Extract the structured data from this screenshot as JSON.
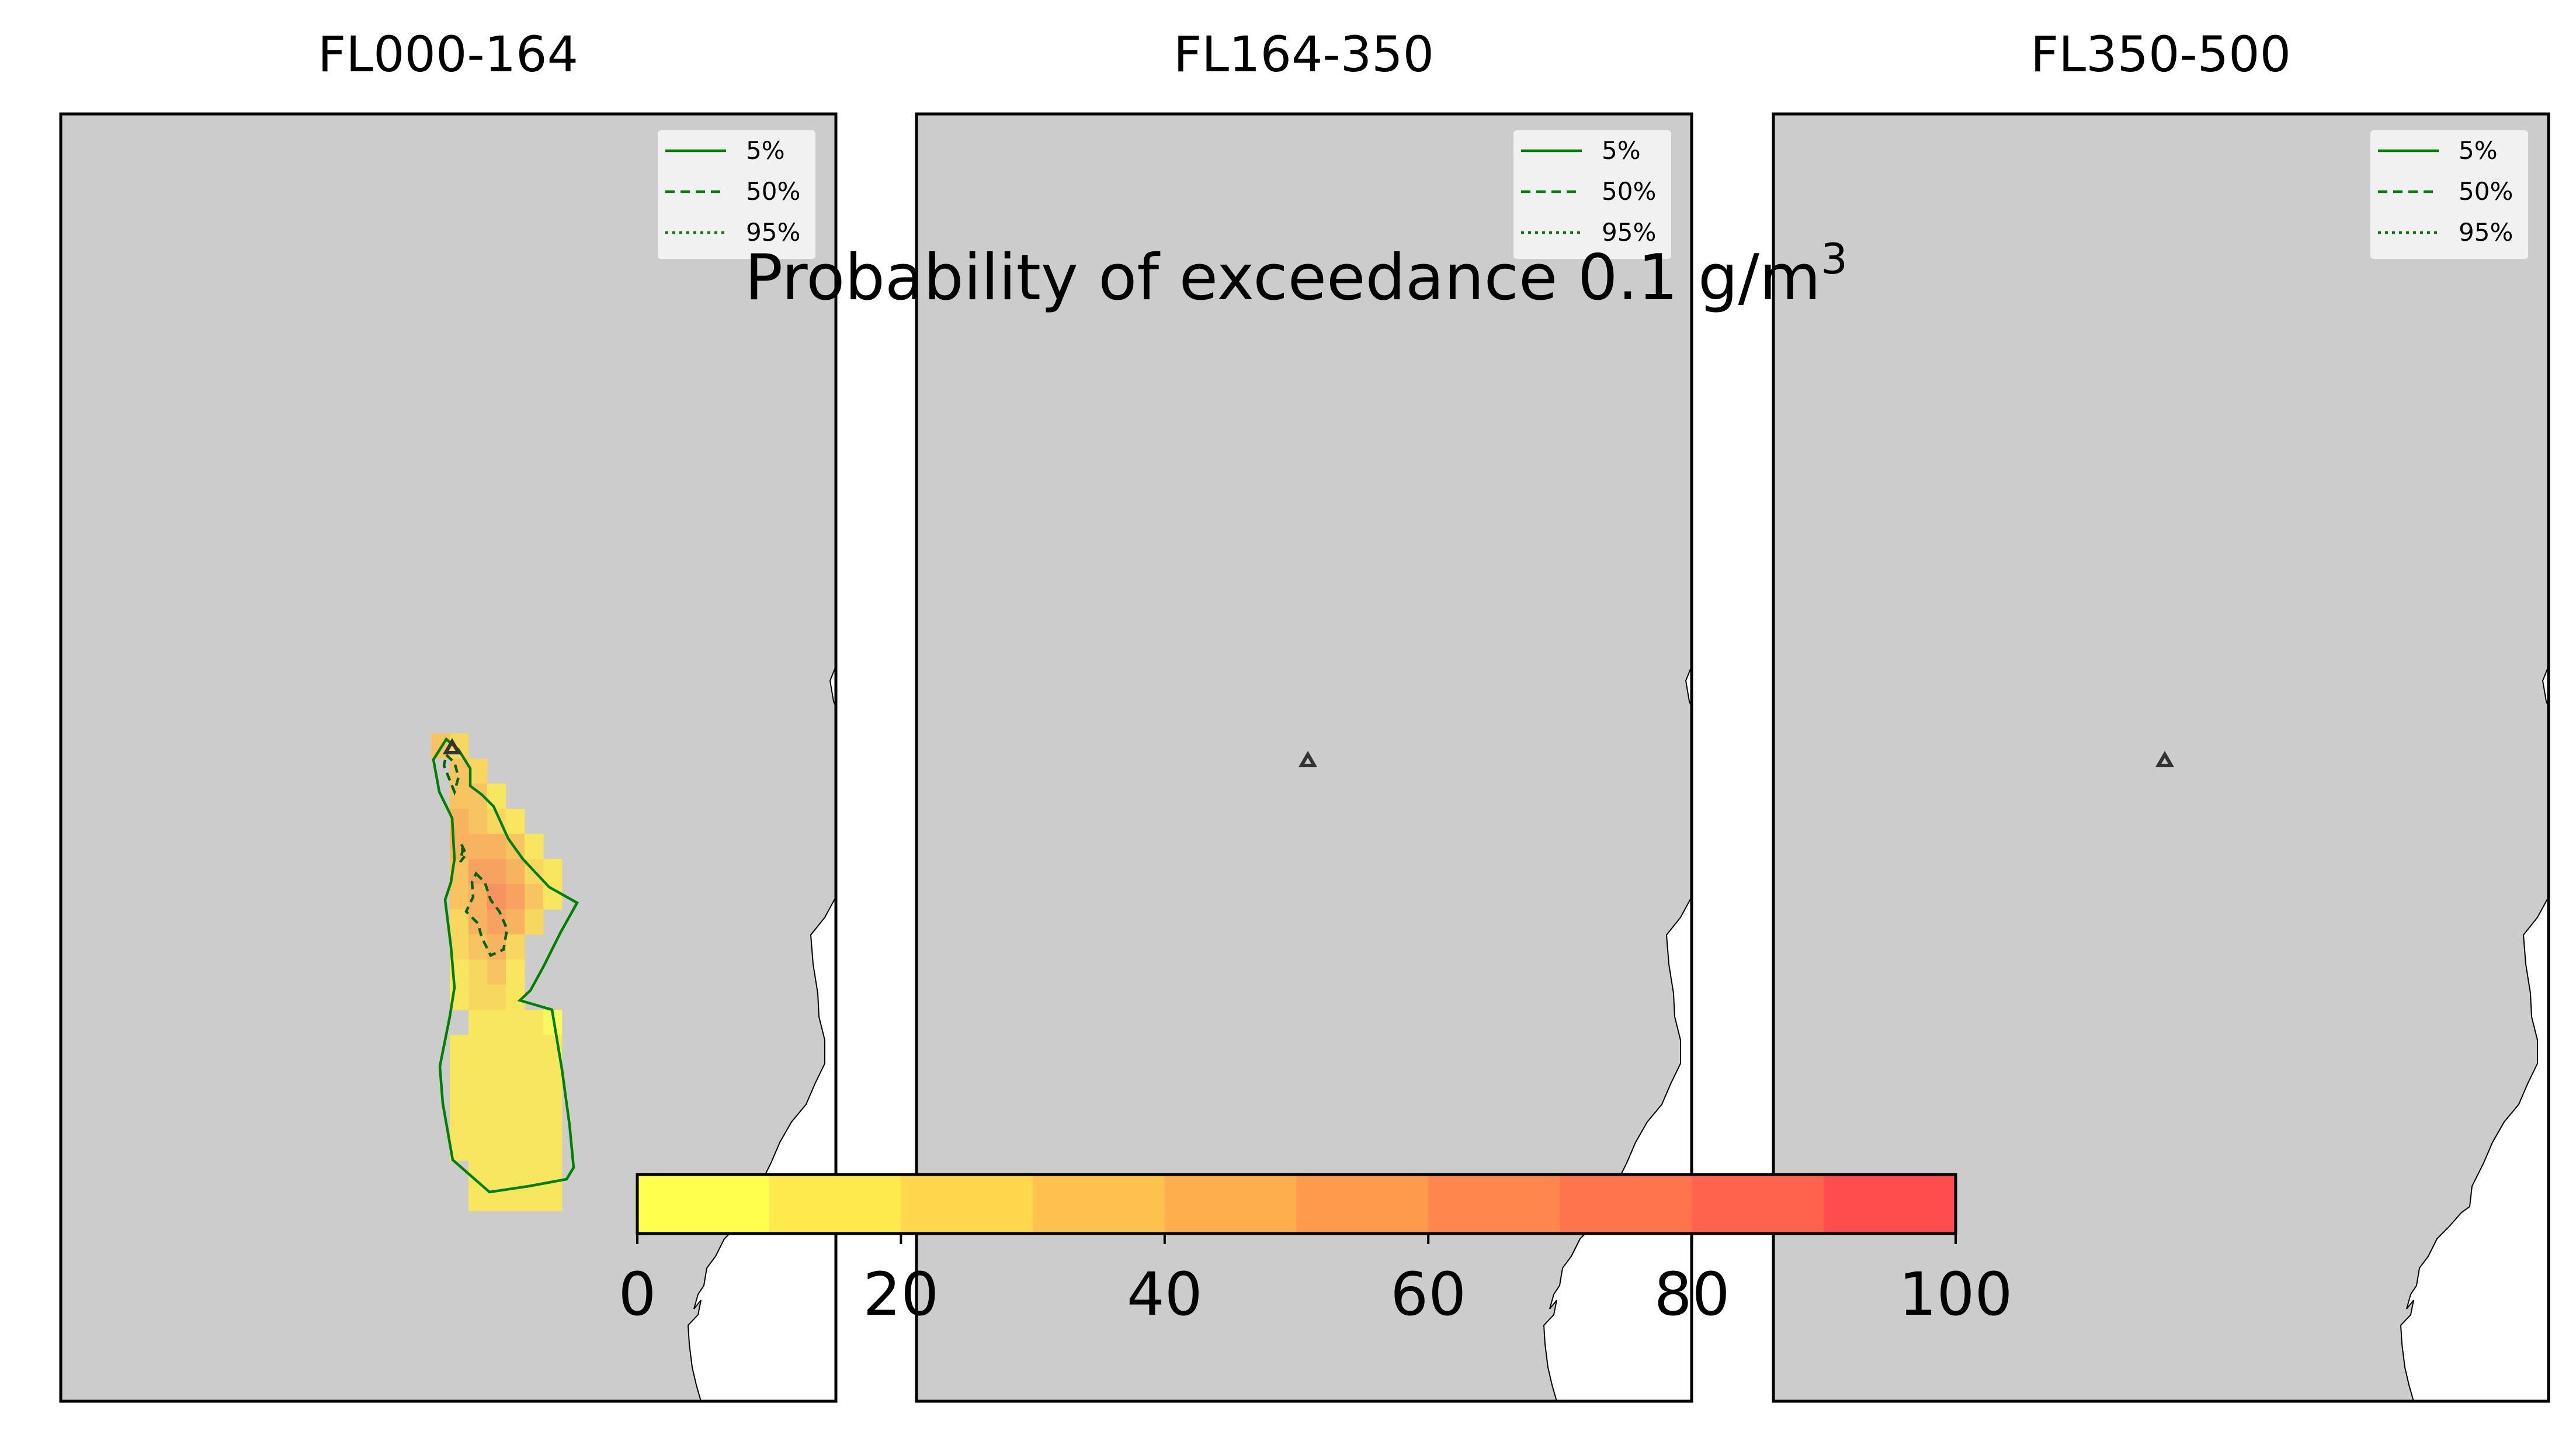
{
  "figure": {
    "suptitle_main": "Probability of exceedance 0.1 g/m",
    "suptitle_sup": "3"
  },
  "panels": [
    {
      "title": "FL000-164",
      "has_plume": true
    },
    {
      "title": "FL164-350",
      "has_plume": false
    },
    {
      "title": "FL350-500",
      "has_plume": false
    }
  ],
  "legend": {
    "items": [
      {
        "label": "5%",
        "style": "solid"
      },
      {
        "label": "50%",
        "style": "dashed"
      },
      {
        "label": "95%",
        "style": "dotted"
      }
    ],
    "line_color": "#008000"
  },
  "colorbar": {
    "ticks": [
      "0",
      "20",
      "40",
      "60",
      "80",
      "100"
    ],
    "range": [
      0,
      100
    ],
    "colors": [
      "#ffff4d",
      "#ffea4d",
      "#ffd84d",
      "#ffc24d",
      "#ffae4d",
      "#ff9a4d",
      "#ff874d",
      "#ff744d",
      "#ff624d",
      "#ff4d4d"
    ]
  },
  "map_style": {
    "land_color": "#cccccc",
    "sea_color": "#ffffff",
    "volcano_marker": "triangle"
  },
  "plume_cells": [
    [
      0,
      0,
      22
    ],
    [
      -1,
      0,
      30
    ],
    [
      0,
      1,
      30
    ],
    [
      1,
      1,
      22
    ],
    [
      0,
      2,
      35
    ],
    [
      1,
      2,
      30
    ],
    [
      2,
      2,
      15
    ],
    [
      0,
      3,
      40
    ],
    [
      1,
      3,
      35
    ],
    [
      2,
      3,
      25
    ],
    [
      3,
      3,
      12
    ],
    [
      0,
      4,
      48
    ],
    [
      1,
      4,
      40
    ],
    [
      2,
      4,
      45
    ],
    [
      3,
      4,
      30
    ],
    [
      4,
      4,
      12
    ],
    [
      0,
      5,
      35
    ],
    [
      1,
      5,
      50
    ],
    [
      2,
      5,
      55
    ],
    [
      3,
      5,
      45
    ],
    [
      4,
      5,
      25
    ],
    [
      5,
      5,
      10
    ],
    [
      0,
      6,
      30
    ],
    [
      1,
      6,
      45
    ],
    [
      2,
      6,
      60
    ],
    [
      3,
      6,
      50
    ],
    [
      4,
      6,
      30
    ],
    [
      5,
      6,
      10
    ],
    [
      0,
      7,
      25
    ],
    [
      1,
      7,
      40
    ],
    [
      2,
      7,
      55
    ],
    [
      3,
      7,
      45
    ],
    [
      4,
      7,
      20
    ],
    [
      0,
      8,
      20
    ],
    [
      1,
      8,
      35
    ],
    [
      2,
      8,
      40
    ],
    [
      3,
      8,
      25
    ],
    [
      0,
      9,
      15
    ],
    [
      1,
      9,
      25
    ],
    [
      2,
      9,
      35
    ],
    [
      3,
      9,
      15
    ],
    [
      0,
      10,
      12
    ],
    [
      1,
      10,
      20
    ],
    [
      2,
      10,
      25
    ],
    [
      3,
      10,
      12
    ],
    [
      1,
      11,
      15
    ],
    [
      2,
      11,
      18
    ],
    [
      3,
      11,
      12
    ],
    [
      4,
      11,
      10
    ],
    [
      5,
      11,
      8
    ],
    [
      0,
      12,
      10
    ],
    [
      1,
      12,
      12
    ],
    [
      2,
      12,
      12
    ],
    [
      3,
      12,
      12
    ],
    [
      4,
      12,
      12
    ],
    [
      5,
      12,
      10
    ],
    [
      0,
      13,
      10
    ],
    [
      1,
      13,
      12
    ],
    [
      2,
      13,
      12
    ],
    [
      3,
      13,
      12
    ],
    [
      4,
      13,
      12
    ],
    [
      5,
      13,
      10
    ],
    [
      0,
      14,
      10
    ],
    [
      1,
      14,
      12
    ],
    [
      2,
      14,
      12
    ],
    [
      3,
      14,
      12
    ],
    [
      4,
      14,
      12
    ],
    [
      5,
      14,
      10
    ],
    [
      0,
      15,
      10
    ],
    [
      1,
      15,
      12
    ],
    [
      2,
      15,
      12
    ],
    [
      3,
      15,
      12
    ],
    [
      4,
      15,
      12
    ],
    [
      5,
      15,
      10
    ],
    [
      0,
      16,
      10
    ],
    [
      1,
      16,
      12
    ],
    [
      2,
      16,
      12
    ],
    [
      3,
      16,
      12
    ],
    [
      4,
      16,
      12
    ],
    [
      5,
      16,
      10
    ],
    [
      1,
      17,
      10
    ],
    [
      2,
      17,
      12
    ],
    [
      3,
      17,
      12
    ],
    [
      4,
      17,
      12
    ],
    [
      5,
      17,
      10
    ],
    [
      1,
      18,
      10
    ],
    [
      2,
      18,
      10
    ],
    [
      3,
      18,
      10
    ],
    [
      4,
      18,
      10
    ],
    [
      5,
      18,
      10
    ]
  ]
}
